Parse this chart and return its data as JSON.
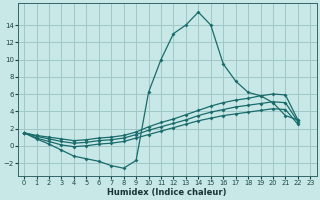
{
  "xlabel": "Humidex (Indice chaleur)",
  "bg_color": "#c8e8e8",
  "grid_color": "#a0c8c8",
  "line_color": "#1a6b6b",
  "xlim": [
    -0.5,
    23.5
  ],
  "ylim": [
    -3.5,
    16.5
  ],
  "yticks": [
    -2,
    0,
    2,
    4,
    6,
    8,
    10,
    12,
    14
  ],
  "xticks": [
    0,
    1,
    2,
    3,
    4,
    5,
    6,
    7,
    8,
    9,
    10,
    11,
    12,
    13,
    14,
    15,
    16,
    17,
    18,
    19,
    20,
    21,
    22,
    23
  ],
  "series": [
    [
      1.5,
      0.8,
      0.2,
      -0.5,
      -1.2,
      -1.5,
      -1.8,
      -2.3,
      -2.6,
      -1.7,
      6.2,
      10.0,
      13.0,
      14.0,
      15.5,
      14.0,
      9.5,
      7.5,
      6.2,
      5.8,
      5.0,
      3.5,
      3.0
    ],
    [
      1.5,
      1.2,
      1.0,
      0.8,
      0.6,
      0.7,
      0.9,
      1.0,
      1.2,
      1.6,
      2.2,
      2.7,
      3.1,
      3.6,
      4.1,
      4.6,
      5.0,
      5.3,
      5.5,
      5.8,
      6.0,
      5.9,
      3.0
    ],
    [
      1.5,
      1.1,
      0.8,
      0.5,
      0.3,
      0.4,
      0.6,
      0.7,
      0.9,
      1.3,
      1.8,
      2.2,
      2.6,
      3.0,
      3.5,
      3.9,
      4.2,
      4.5,
      4.7,
      4.9,
      5.1,
      5.0,
      2.8
    ],
    [
      1.5,
      0.9,
      0.5,
      0.1,
      -0.1,
      0.0,
      0.2,
      0.3,
      0.5,
      0.9,
      1.3,
      1.7,
      2.1,
      2.5,
      2.9,
      3.2,
      3.5,
      3.7,
      3.9,
      4.1,
      4.3,
      4.2,
      2.5
    ]
  ]
}
